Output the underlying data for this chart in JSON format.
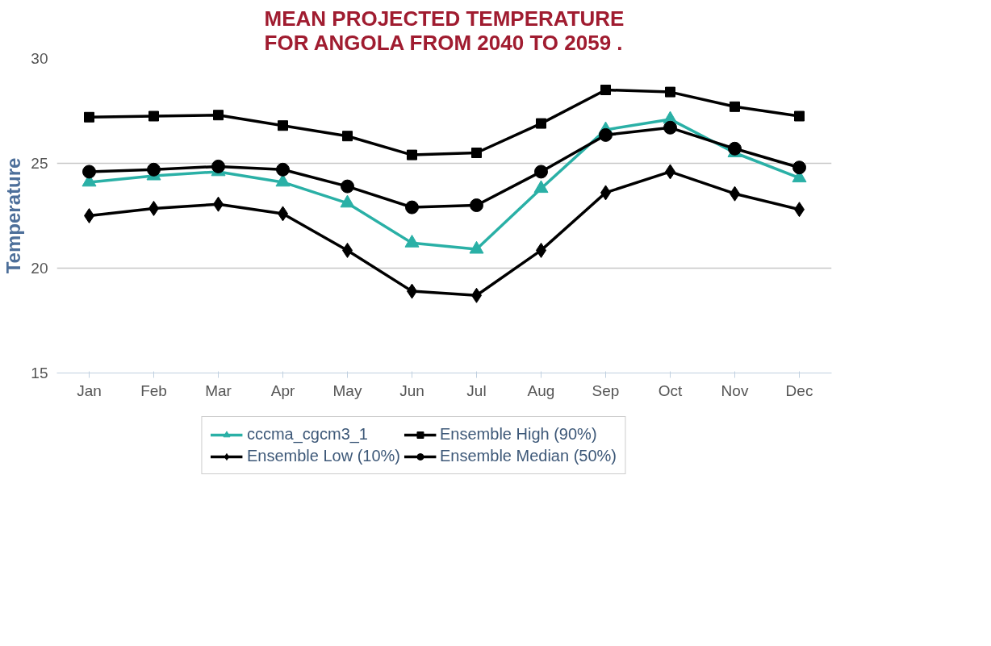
{
  "chart_data": {
    "type": "line",
    "title": "MEAN PROJECTED TEMPERATURE\nFOR ANGOLA FROM 2040 TO 2059 .",
    "ylabel": "Temperature",
    "categories": [
      "Jan",
      "Feb",
      "Mar",
      "Apr",
      "May",
      "Jun",
      "Jul",
      "Aug",
      "Sep",
      "Oct",
      "Nov",
      "Dec"
    ],
    "series": [
      {
        "name": "cccma_cgcm3_1",
        "color": "#2ab0a6",
        "marker": "triangle",
        "values": [
          24.1,
          24.4,
          24.6,
          24.1,
          23.1,
          21.2,
          20.9,
          23.8,
          26.6,
          27.1,
          25.5,
          24.3
        ]
      },
      {
        "name": "Ensemble High (90%)",
        "color": "#000000",
        "marker": "square",
        "values": [
          27.2,
          27.25,
          27.3,
          26.8,
          26.3,
          25.4,
          25.5,
          26.9,
          28.5,
          28.4,
          27.7,
          27.25
        ]
      },
      {
        "name": "Ensemble Low (10%)",
        "color": "#000000",
        "marker": "diamond",
        "values": [
          22.5,
          22.85,
          23.05,
          22.6,
          20.85,
          18.9,
          18.7,
          20.85,
          23.6,
          24.6,
          23.55,
          22.8
        ]
      },
      {
        "name": "Ensemble Median (50%)",
        "color": "#000000",
        "marker": "circle",
        "values": [
          24.6,
          24.7,
          24.85,
          24.7,
          23.9,
          22.9,
          23.0,
          24.6,
          26.35,
          26.7,
          25.7,
          24.8
        ]
      }
    ],
    "ylim": [
      15,
      30
    ],
    "yticks": [
      15,
      20,
      25,
      30
    ],
    "grid": "y",
    "legend": "bottom",
    "line_style": "solid"
  }
}
